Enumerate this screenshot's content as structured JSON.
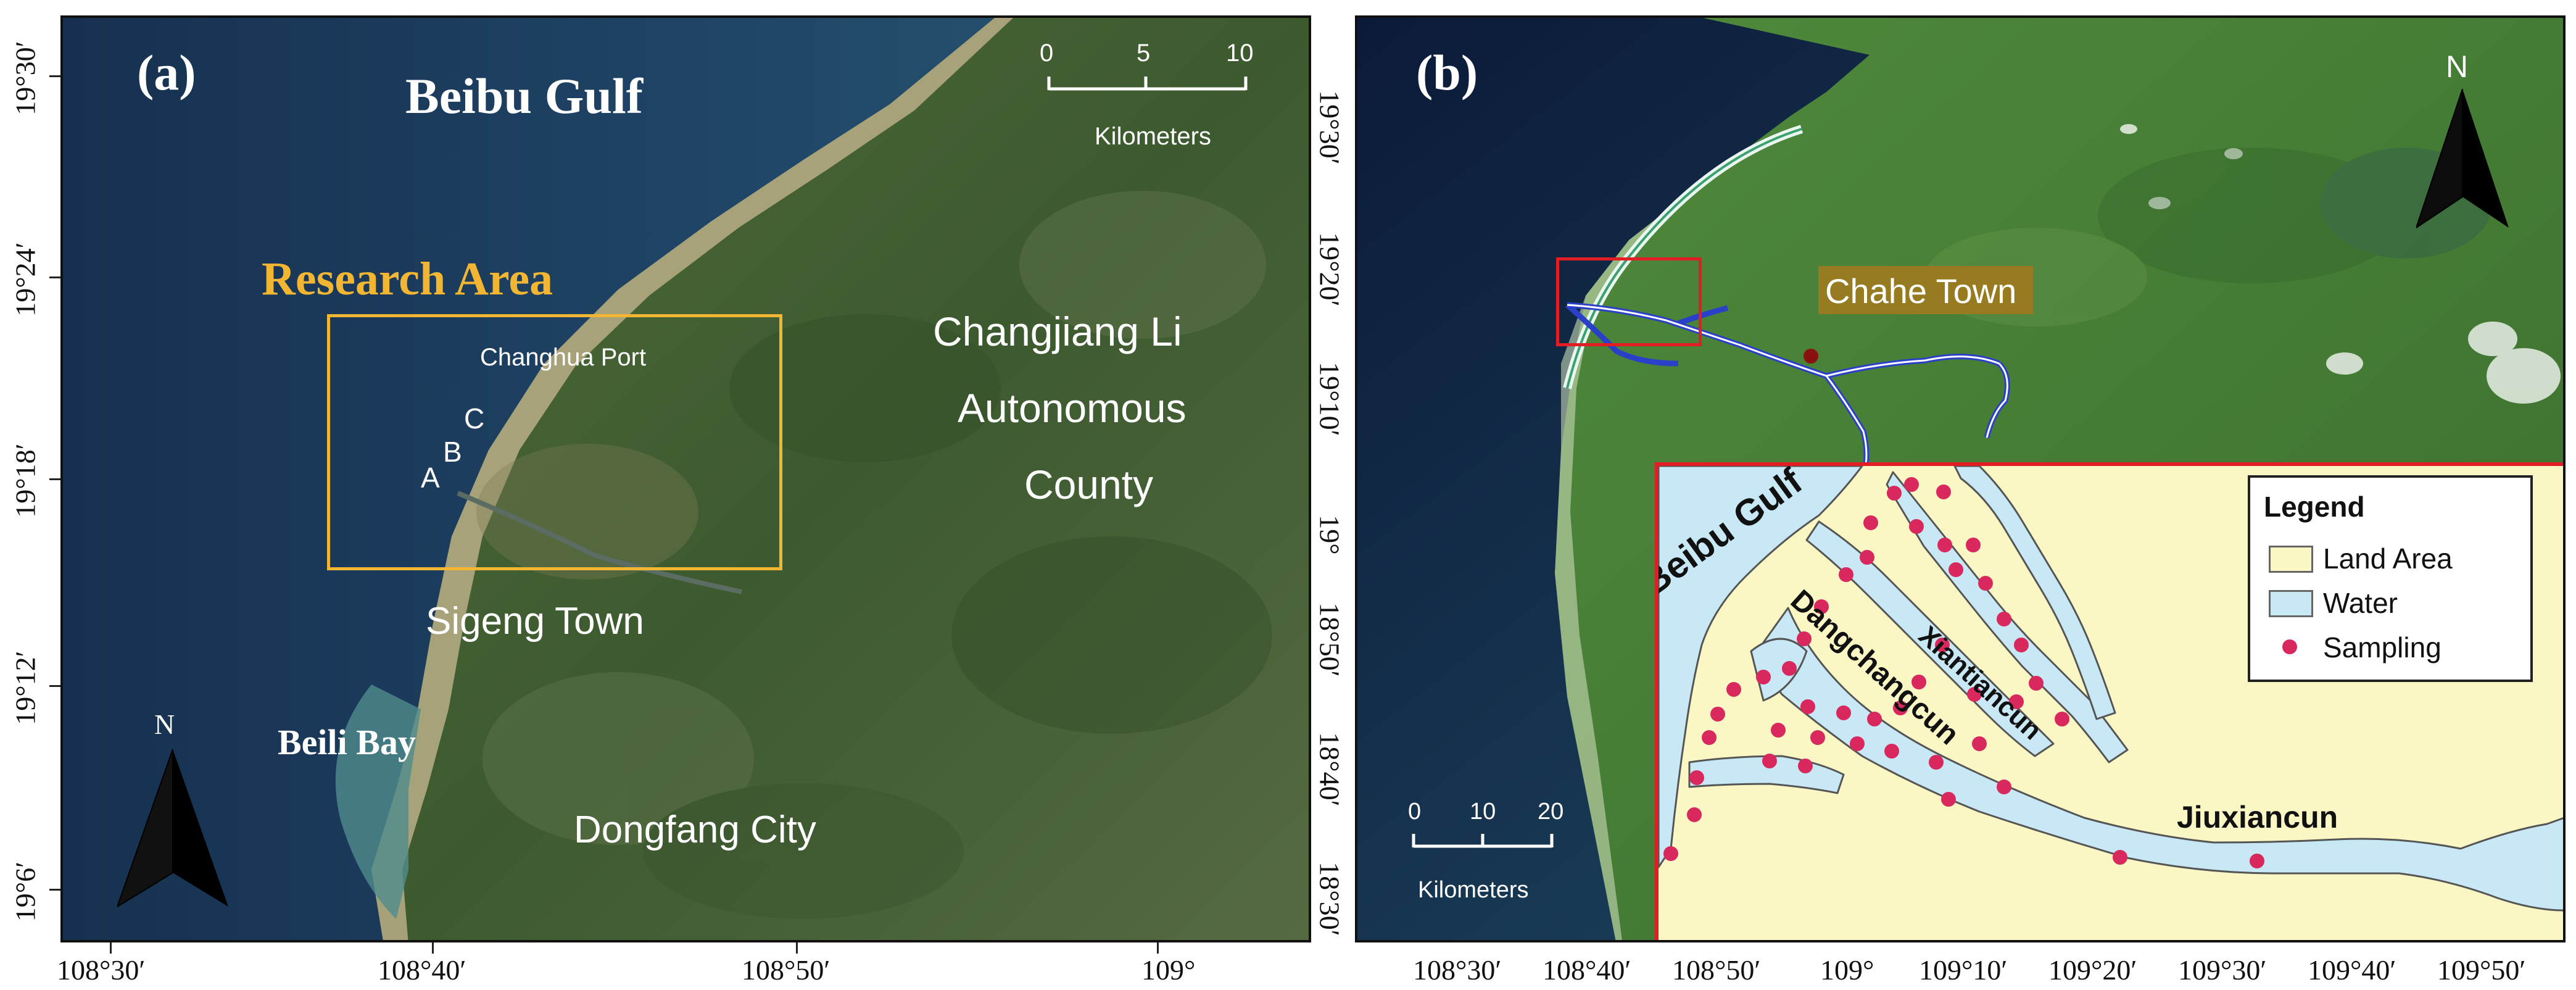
{
  "panel_a": {
    "tag": "(a)",
    "sea_label": "Beibu Gulf",
    "research_area_label": "Research Area",
    "port_label": "Changhua Port",
    "points": [
      "A",
      "B",
      "C"
    ],
    "county_label": [
      "Changjiang Li",
      "Autonomous",
      "County"
    ],
    "town_label": "Sigeng Town",
    "bay_label": "Beili Bay",
    "city_label": "Dongfang City",
    "north_label": "N",
    "scale": {
      "ticks": [
        "0",
        "5",
        "10"
      ],
      "unit": "Kilometers"
    },
    "x_ticks": [
      "108°30′",
      "108°40′",
      "108°50′",
      "109°"
    ],
    "y_ticks": [
      "19°30′",
      "19°24′",
      "19°18′",
      "19°12′",
      "19°6′"
    ],
    "research_box_color": "#f2b632"
  },
  "panel_b": {
    "tag": "(b)",
    "town_label": "Chahe Town",
    "north_label": "N",
    "scale": {
      "ticks": [
        "0",
        "10",
        "20"
      ],
      "unit": "Kilometers"
    },
    "x_ticks": [
      "108°30′",
      "108°40′",
      "108°50′",
      "109°",
      "109°10′",
      "109°20′",
      "109°30′",
      "109°40′",
      "109°50′"
    ],
    "y_ticks": [
      "19°30′",
      "19°20′",
      "19°10′",
      "19°",
      "18°50′",
      "18°40′",
      "18°30′"
    ],
    "inset": {
      "sea_label": "Beibu Gulf",
      "branch_labels": [
        "Dangchangcun",
        "Xiantiancun"
      ],
      "village_label": "Jiuxiancun",
      "legend_title": "Legend",
      "legend_items": [
        {
          "label": "Land Area",
          "color": "#fbf7c4"
        },
        {
          "label": "Water",
          "color": "#c9e8f5"
        },
        {
          "label": "Sampling",
          "color": "#d9285e"
        }
      ],
      "border_color": "#e21d24"
    }
  }
}
